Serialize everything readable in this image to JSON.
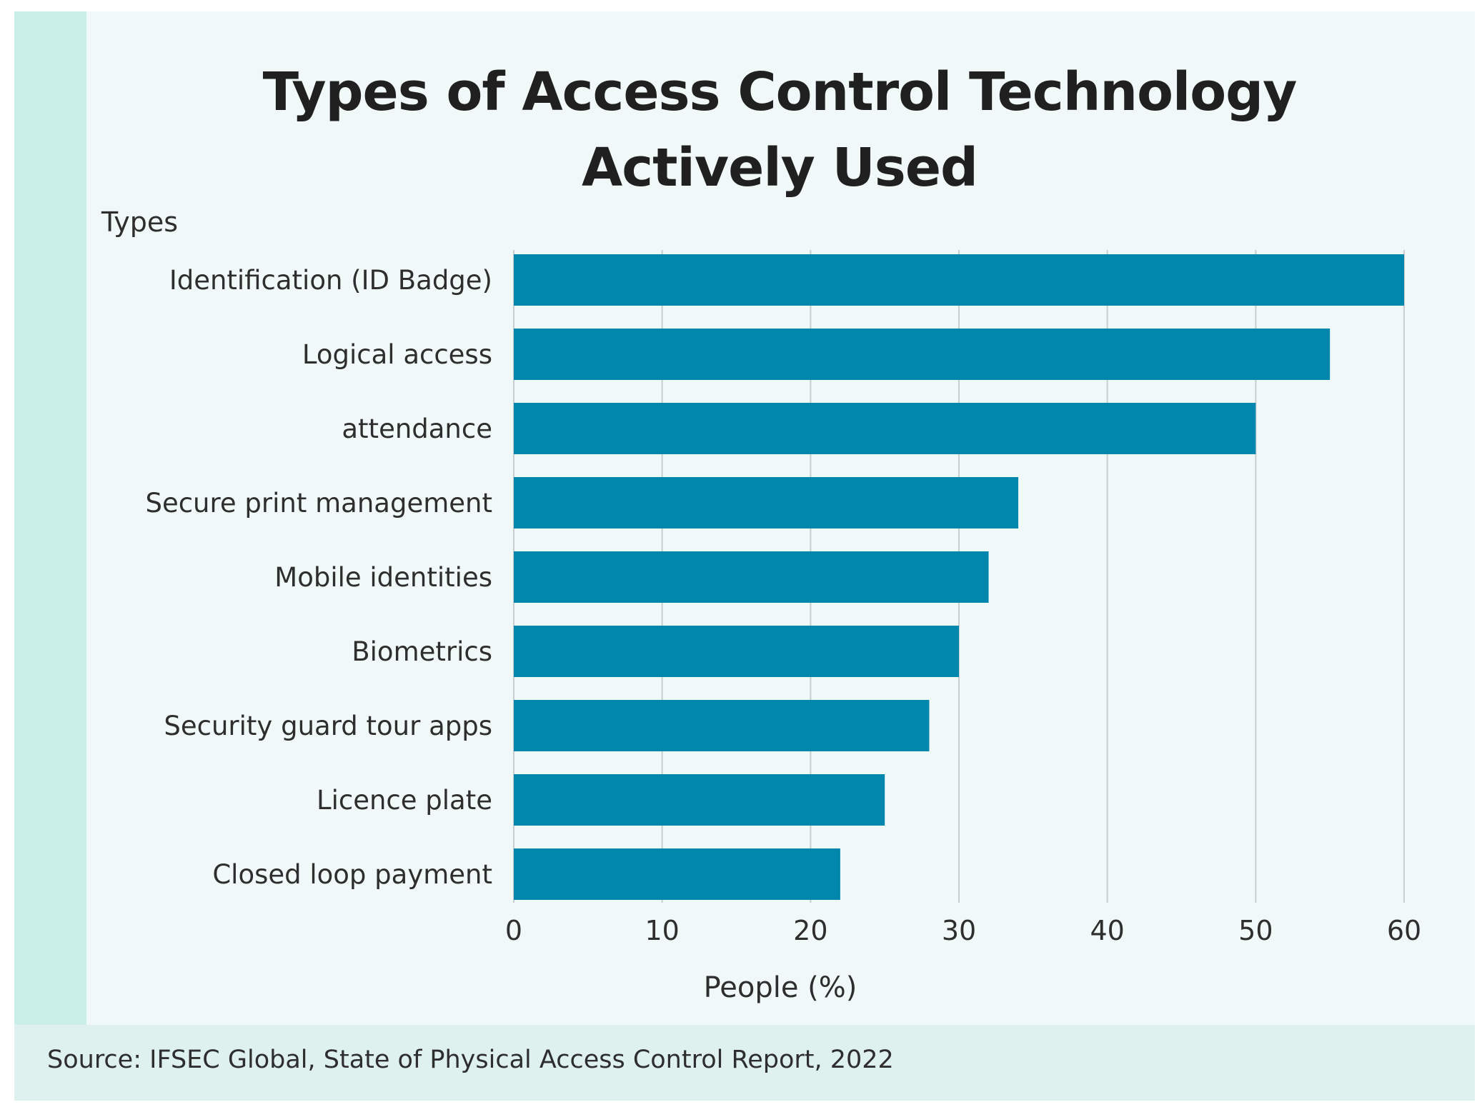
{
  "colors": {
    "bar": "#0187ad",
    "accent_strip": "#c9efe8",
    "footer_bg": "#dff1ee",
    "card_bg": "#f0f8f8",
    "grid": "#c9cfd1",
    "text": "#2e2e2e"
  },
  "footer": {
    "source": "Source: IFSEC Global, State of Physical Access Control Report, 2022"
  },
  "chart_data": {
    "type": "bar",
    "orientation": "horizontal",
    "title_lines": [
      "Types of Access Control Technology",
      "Actively Used"
    ],
    "ylabel": "Types",
    "xlabel": "People (%)",
    "categories": [
      "Identification (ID Badge)",
      "Logical access",
      "attendance",
      "Secure print management",
      "Mobile identities",
      "Biometrics",
      "Security guard tour apps",
      "Licence plate",
      "Closed loop payment"
    ],
    "values": [
      60,
      55,
      50,
      34,
      32,
      30,
      28,
      25,
      22
    ],
    "xlim": [
      0,
      60
    ],
    "xticks": [
      "0",
      "10",
      "20",
      "30",
      "40",
      "50",
      "60"
    ],
    "grid": "vertical"
  }
}
